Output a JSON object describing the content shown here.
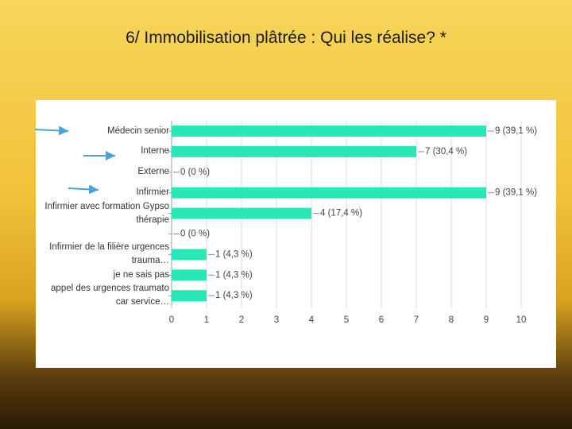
{
  "title": "6/ Immobilisation plâtrée : Qui les réalise? *",
  "chart_data": {
    "type": "barh",
    "categories": [
      "Médecin senior",
      "Interne",
      "Externe",
      "Infirmier",
      "Infirmier avec formation Gypso thérapie",
      null,
      "Infirmier de la filière urgences trauma…",
      "je ne sais pas",
      "appel des urgences traumato car service…"
    ],
    "values": [
      9,
      7,
      0,
      9,
      4,
      0,
      1,
      1,
      1
    ],
    "value_labels": [
      "9 (39,1 %)",
      "7 (30,4 %)",
      "0 (0 %)",
      "9 (39,1 %)",
      "4 (17,4 %)",
      "0 (0 %)",
      "1 (4,3 %)",
      "1 (4,3 %)",
      "1 (4,3 %)"
    ],
    "color": "#27e8b6",
    "xlim": [
      0,
      10
    ],
    "xticks": [
      0,
      1,
      2,
      3,
      4,
      5,
      6,
      7,
      8,
      9,
      10
    ],
    "grid": true
  }
}
